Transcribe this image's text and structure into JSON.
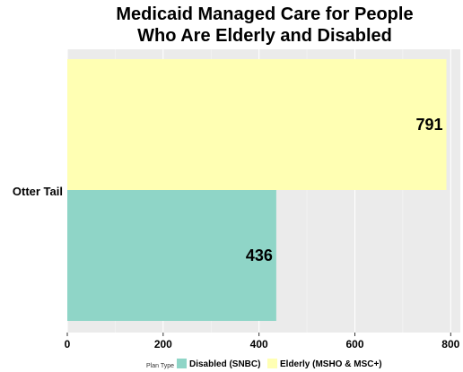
{
  "chart_data": {
    "type": "bar",
    "orientation": "horizontal",
    "title_lines": [
      "Medicaid Managed Care for People",
      "Who Are Elderly and Disabled"
    ],
    "categories": [
      "Otter Tail"
    ],
    "series": [
      {
        "name": "Disabled (SNBC)",
        "values": [
          436
        ],
        "color": "#8fd5c7"
      },
      {
        "name": "Elderly (MSHO & MSC+)",
        "values": [
          791
        ],
        "color": "#ffffb3"
      }
    ],
    "xlim": [
      0,
      820
    ],
    "x_ticks": [
      0,
      200,
      400,
      600,
      800
    ],
    "grid": true,
    "legend_title": "Plan Type",
    "legend_position": "bottom",
    "panel_color": "#ebebeb"
  }
}
